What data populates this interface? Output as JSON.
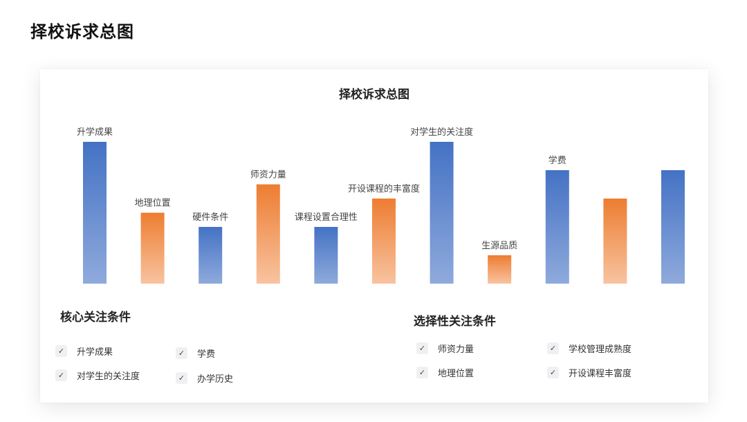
{
  "page_title": "择校诉求总图",
  "chart_data": {
    "type": "bar",
    "title": "择校诉求总图",
    "categories": [
      "升学成果",
      "地理位置",
      "硬件条件",
      "师资力量",
      "课程设置合理性",
      "开设课程的丰富度",
      "对学生的关注度",
      "生源品质",
      "学费",
      "",
      ""
    ],
    "values": [
      10,
      5,
      4,
      7,
      4,
      6,
      10,
      2,
      8,
      6,
      8
    ],
    "colors": [
      "blue",
      "orange",
      "blue",
      "orange",
      "blue",
      "orange",
      "blue",
      "orange",
      "blue",
      "orange",
      "blue"
    ],
    "ylim": [
      0,
      10
    ],
    "palette": {
      "blue_top": "#4472c4",
      "blue_bottom": "#8faadc",
      "orange_top": "#ed7d31",
      "orange_bottom": "#f8c3a0"
    }
  },
  "core": {
    "title": "核心关注条件",
    "items": [
      "升学成果",
      "学费",
      "对学生的关注度",
      "办学历史"
    ]
  },
  "optional": {
    "title": "选择性关注条件",
    "items": [
      "师资力量",
      "学校管理成熟度",
      "地理位置",
      "开设课程丰富度"
    ]
  },
  "check_icon": "check-icon"
}
